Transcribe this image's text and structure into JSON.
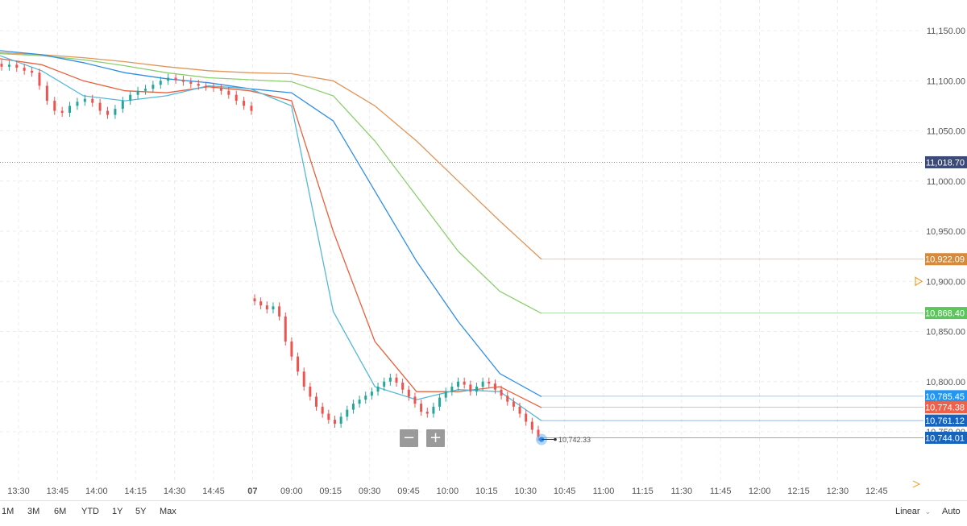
{
  "colors": {
    "ma_lightblue": "#56b8d8",
    "ma_red": "#e8603c",
    "ma_blue": "#2f8ee5",
    "ma_green": "#8ccf6e",
    "ma_orange": "#e0955a",
    "candle_up": "#26a69a",
    "candle_down": "#ef5350",
    "current_label": "#3b4a78",
    "orange_label": "#d68a3a",
    "green_label": "#5cc65c",
    "blue_label": "#2196f3",
    "red_label": "#f0614a",
    "dark_blue_label": "#1565c0"
  },
  "chart_data": {
    "type": "candlestick",
    "ylim": [
      10700,
      11170
    ],
    "y_ticks": [
      "11,150.00",
      "11,100.00",
      "11,050.00",
      "11,000.00",
      "10,950.00",
      "10,900.00",
      "10,850.00",
      "10,800.00",
      "10,750.00"
    ],
    "x_ticks": [
      "13:30",
      "13:45",
      "14:00",
      "14:15",
      "14:30",
      "14:45",
      "07",
      "09:00",
      "09:15",
      "09:30",
      "09:45",
      "10:00",
      "10:15",
      "10:30",
      "10:45",
      "11:00",
      "11:15",
      "11:30",
      "11:45",
      "12:00",
      "12:15",
      "12:30",
      "12:45"
    ],
    "price_line": {
      "value": 11018.7,
      "label": "11,018.70"
    },
    "last_price": {
      "value": 10742.33,
      "label": "10,742.33"
    },
    "series": [
      {
        "color_key": "ma_orange",
        "label": "10,922.09",
        "last": 10922.09,
        "values": [
          11128,
          11126,
          11123,
          11119,
          11114,
          11110,
          11108,
          11107,
          11100,
          11075,
          11040,
          11000,
          10960,
          10922
        ]
      },
      {
        "color_key": "ma_green",
        "label": "10,868.40",
        "last": 10868.4,
        "values": [
          11127,
          11125,
          11121,
          11115,
          11108,
          11103,
          11101,
          11099,
          11085,
          11040,
          10985,
          10930,
          10890,
          10868
        ]
      },
      {
        "color_key": "ma_blue",
        "label": "10,785.45",
        "last": 10785.45,
        "values": [
          11130,
          11126,
          11118,
          11108,
          11102,
          11098,
          11092,
          11088,
          11060,
          10990,
          10920,
          10860,
          10808,
          10785
        ]
      },
      {
        "color_key": "ma_red",
        "label": "10,774.38",
        "last": 10774.38,
        "values": [
          11122,
          11116,
          11100,
          11090,
          11088,
          11094,
          11090,
          11080,
          10950,
          10840,
          10790,
          10790,
          10795,
          10774
        ]
      },
      {
        "color_key": "ma_lightblue",
        "label": "10,761.12",
        "last": 10761.12,
        "values": [
          11125,
          11110,
          11085,
          11080,
          11085,
          11095,
          11092,
          11075,
          10870,
          10795,
          10782,
          10792,
          10790,
          10761
        ]
      }
    ],
    "last_value_labels": [
      {
        "label": "10,744.01",
        "value": 10744.01,
        "color_key": "dark_blue_label"
      }
    ],
    "candle_path_early": [
      11114,
      11116,
      11113,
      11110,
      11108,
      11095,
      11080,
      11070,
      11068,
      11075,
      11079,
      11082,
      11078,
      11070,
      11066,
      11072,
      11080,
      11086,
      11090,
      11092,
      11096,
      11100,
      11103,
      11101,
      11099,
      11097,
      11095,
      11094,
      11093,
      11090,
      11086,
      11080,
      11075,
      11070
    ],
    "candle_path_late": [
      10880,
      10876,
      10872,
      10875,
      10865,
      10840,
      10825,
      10810,
      10795,
      10785,
      10775,
      10768,
      10762,
      10758,
      10765,
      10772,
      10778,
      10782,
      10786,
      10790,
      10795,
      10800,
      10804,
      10799,
      10792,
      10785,
      10778,
      10770,
      10768,
      10775,
      10784,
      10790,
      10795,
      10800,
      10797,
      10790,
      10795,
      10800,
      10798,
      10792,
      10786,
      10780,
      10775,
      10768,
      10760,
      10752,
      10745
    ]
  },
  "zoom": {
    "minus": "−",
    "plus": "+"
  },
  "range_buttons": [
    "1M",
    "3M",
    "6M",
    "YTD",
    "1Y",
    "5Y",
    "Max"
  ],
  "scale_controls": {
    "linear": "Linear",
    "auto": "Auto"
  }
}
